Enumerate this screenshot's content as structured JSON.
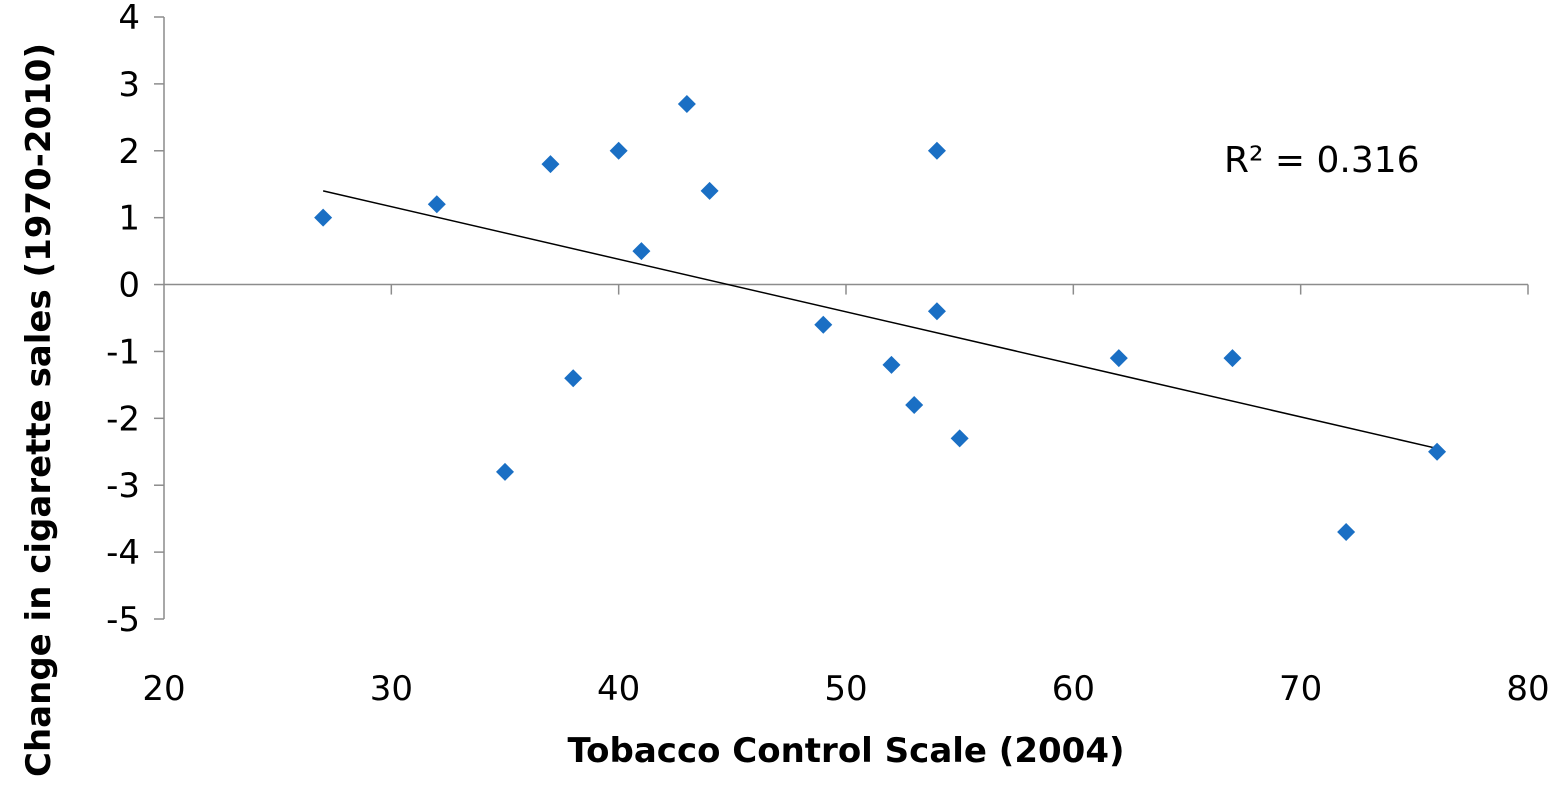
{
  "chart_data": {
    "type": "scatter",
    "title": "",
    "xlabel": "Tobacco Control Scale (2004)",
    "ylabel": "Change in cigarette sales (1970-2010)",
    "xlim": [
      20,
      80
    ],
    "ylim": [
      -5,
      4
    ],
    "x_ticks": [
      20,
      30,
      40,
      50,
      60,
      70,
      80
    ],
    "y_ticks": [
      -5,
      -4,
      -3,
      -2,
      -1,
      0,
      1,
      2,
      3,
      4
    ],
    "grid": false,
    "legend": "none",
    "marker": "diamond",
    "point_color": "#1a6fc4",
    "x": [
      27,
      32,
      35,
      37,
      38,
      40,
      41,
      43,
      44,
      49,
      52,
      53,
      54,
      54,
      55,
      62,
      67,
      72,
      76
    ],
    "y": [
      1.0,
      1.2,
      -2.8,
      1.8,
      -1.4,
      2.0,
      0.5,
      2.7,
      1.4,
      -0.6,
      -1.2,
      -1.8,
      2.0,
      -0.4,
      -2.3,
      -1.1,
      -1.1,
      -3.7,
      -2.5
    ],
    "trendline": {
      "type": "linear",
      "x_start": 27,
      "y_start": 1.4,
      "x_end": 76,
      "y_end": -2.45,
      "color": "#000000"
    },
    "annotations": [
      {
        "text": "R² = 0.316"
      }
    ]
  }
}
